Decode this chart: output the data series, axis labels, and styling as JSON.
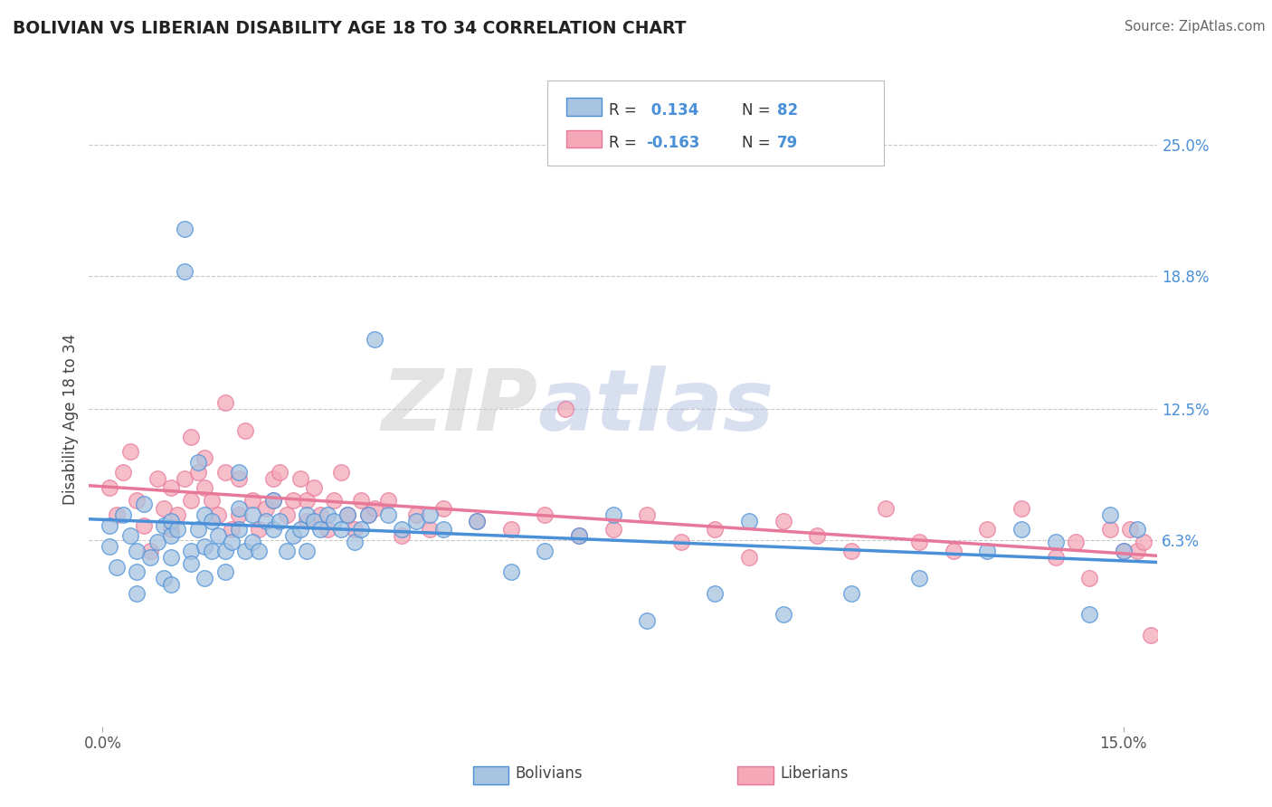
{
  "title": "BOLIVIAN VS LIBERIAN DISABILITY AGE 18 TO 34 CORRELATION CHART",
  "source": "Source: ZipAtlas.com",
  "ylabel": "Disability Age 18 to 34",
  "xlim": [
    -0.002,
    0.155
  ],
  "ylim": [
    -0.025,
    0.265
  ],
  "xtick_labels": [
    "0.0%",
    "15.0%"
  ],
  "xtick_positions": [
    0.0,
    0.15
  ],
  "ytick_labels": [
    "6.3%",
    "12.5%",
    "18.8%",
    "25.0%"
  ],
  "ytick_positions": [
    0.063,
    0.125,
    0.188,
    0.25
  ],
  "r_bolivian": 0.134,
  "n_bolivian": 82,
  "r_liberian": -0.163,
  "n_liberian": 79,
  "bolivian_color": "#a8c4e0",
  "liberian_color": "#f4a8b8",
  "bolivian_line_color": "#4a90d9",
  "liberian_line_color": "#e8789a",
  "background_color": "#ffffff",
  "grid_color": "#c8c8c8",
  "watermark": "ZIPatlas",
  "bolivian_x": [
    0.001,
    0.001,
    0.002,
    0.003,
    0.004,
    0.005,
    0.005,
    0.005,
    0.006,
    0.007,
    0.008,
    0.009,
    0.009,
    0.01,
    0.01,
    0.01,
    0.01,
    0.011,
    0.012,
    0.012,
    0.013,
    0.013,
    0.014,
    0.014,
    0.015,
    0.015,
    0.015,
    0.016,
    0.016,
    0.017,
    0.018,
    0.018,
    0.019,
    0.02,
    0.02,
    0.02,
    0.021,
    0.022,
    0.022,
    0.023,
    0.024,
    0.025,
    0.025,
    0.026,
    0.027,
    0.028,
    0.029,
    0.03,
    0.03,
    0.031,
    0.032,
    0.033,
    0.034,
    0.035,
    0.036,
    0.037,
    0.038,
    0.039,
    0.04,
    0.042,
    0.044,
    0.046,
    0.048,
    0.05,
    0.055,
    0.06,
    0.065,
    0.07,
    0.075,
    0.08,
    0.09,
    0.095,
    0.1,
    0.11,
    0.12,
    0.13,
    0.135,
    0.14,
    0.145,
    0.148,
    0.15,
    0.152
  ],
  "bolivian_y": [
    0.07,
    0.06,
    0.05,
    0.075,
    0.065,
    0.058,
    0.048,
    0.038,
    0.08,
    0.055,
    0.062,
    0.07,
    0.045,
    0.072,
    0.065,
    0.055,
    0.042,
    0.068,
    0.19,
    0.21,
    0.058,
    0.052,
    0.1,
    0.068,
    0.075,
    0.06,
    0.045,
    0.072,
    0.058,
    0.065,
    0.058,
    0.048,
    0.062,
    0.095,
    0.078,
    0.068,
    0.058,
    0.075,
    0.062,
    0.058,
    0.072,
    0.082,
    0.068,
    0.072,
    0.058,
    0.065,
    0.068,
    0.075,
    0.058,
    0.072,
    0.068,
    0.075,
    0.072,
    0.068,
    0.075,
    0.062,
    0.068,
    0.075,
    0.158,
    0.075,
    0.068,
    0.072,
    0.075,
    0.068,
    0.072,
    0.048,
    0.058,
    0.065,
    0.075,
    0.025,
    0.038,
    0.072,
    0.028,
    0.038,
    0.045,
    0.058,
    0.068,
    0.062,
    0.028,
    0.075,
    0.058,
    0.068
  ],
  "liberian_x": [
    0.001,
    0.002,
    0.003,
    0.004,
    0.005,
    0.006,
    0.007,
    0.008,
    0.009,
    0.01,
    0.01,
    0.011,
    0.012,
    0.013,
    0.013,
    0.014,
    0.015,
    0.015,
    0.016,
    0.017,
    0.018,
    0.018,
    0.019,
    0.02,
    0.02,
    0.021,
    0.022,
    0.023,
    0.024,
    0.025,
    0.025,
    0.026,
    0.027,
    0.028,
    0.029,
    0.03,
    0.03,
    0.031,
    0.032,
    0.033,
    0.034,
    0.035,
    0.036,
    0.037,
    0.038,
    0.039,
    0.04,
    0.042,
    0.044,
    0.046,
    0.048,
    0.05,
    0.055,
    0.06,
    0.065,
    0.068,
    0.07,
    0.075,
    0.08,
    0.085,
    0.09,
    0.095,
    0.1,
    0.105,
    0.11,
    0.115,
    0.12,
    0.125,
    0.13,
    0.135,
    0.14,
    0.143,
    0.145,
    0.148,
    0.15,
    0.151,
    0.152,
    0.153,
    0.154
  ],
  "liberian_y": [
    0.088,
    0.075,
    0.095,
    0.105,
    0.082,
    0.07,
    0.058,
    0.092,
    0.078,
    0.088,
    0.068,
    0.075,
    0.092,
    0.112,
    0.082,
    0.095,
    0.088,
    0.102,
    0.082,
    0.075,
    0.128,
    0.095,
    0.068,
    0.092,
    0.075,
    0.115,
    0.082,
    0.068,
    0.078,
    0.092,
    0.082,
    0.095,
    0.075,
    0.082,
    0.092,
    0.082,
    0.072,
    0.088,
    0.075,
    0.068,
    0.082,
    0.095,
    0.075,
    0.068,
    0.082,
    0.075,
    0.078,
    0.082,
    0.065,
    0.075,
    0.068,
    0.078,
    0.072,
    0.068,
    0.075,
    0.125,
    0.065,
    0.068,
    0.075,
    0.062,
    0.068,
    0.055,
    0.072,
    0.065,
    0.058,
    0.078,
    0.062,
    0.058,
    0.068,
    0.078,
    0.055,
    0.062,
    0.045,
    0.068,
    0.058,
    0.068,
    0.058,
    0.062,
    0.018
  ]
}
